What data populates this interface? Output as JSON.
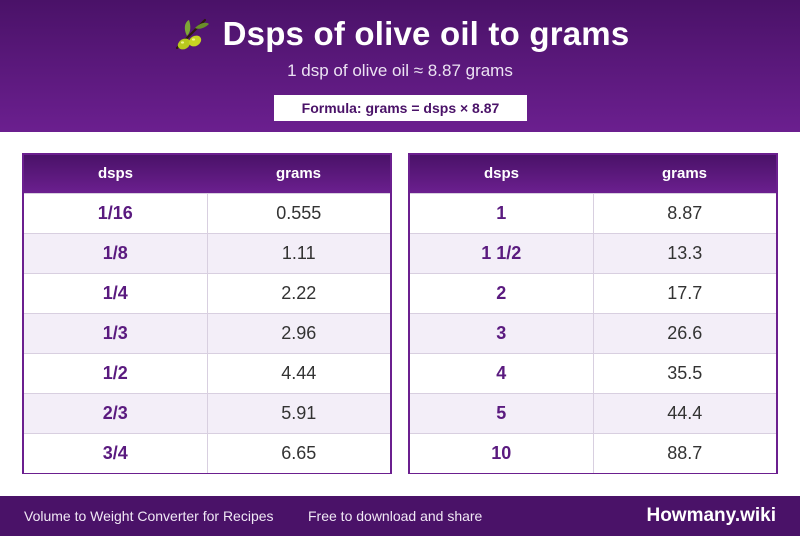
{
  "header": {
    "title": "Dsps of olive oil to grams",
    "subtitle": "1 dsp of olive oil ≈ 8.87 grams",
    "formula": "Formula: grams = dsps × 8.87",
    "icon": "olive-icon"
  },
  "tables": [
    {
      "headers": [
        "dsps",
        "grams"
      ],
      "rows": [
        [
          "1/16",
          "0.555"
        ],
        [
          "1/8",
          "1.11"
        ],
        [
          "1/4",
          "2.22"
        ],
        [
          "1/3",
          "2.96"
        ],
        [
          "1/2",
          "4.44"
        ],
        [
          "2/3",
          "5.91"
        ],
        [
          "3/4",
          "6.65"
        ]
      ]
    },
    {
      "headers": [
        "dsps",
        "grams"
      ],
      "rows": [
        [
          "1",
          "8.87"
        ],
        [
          "1 1/2",
          "13.3"
        ],
        [
          "2",
          "17.7"
        ],
        [
          "3",
          "26.6"
        ],
        [
          "4",
          "35.5"
        ],
        [
          "5",
          "44.4"
        ],
        [
          "10",
          "88.7"
        ]
      ]
    }
  ],
  "footer": {
    "left": "Volume to Weight Converter for Recipes",
    "middle": "Free to download and share",
    "brand": "Howmany.wiki"
  },
  "colors": {
    "primary": "#4a1268",
    "accent": "#6b1f8f",
    "row_alt": "#f3eef8"
  }
}
